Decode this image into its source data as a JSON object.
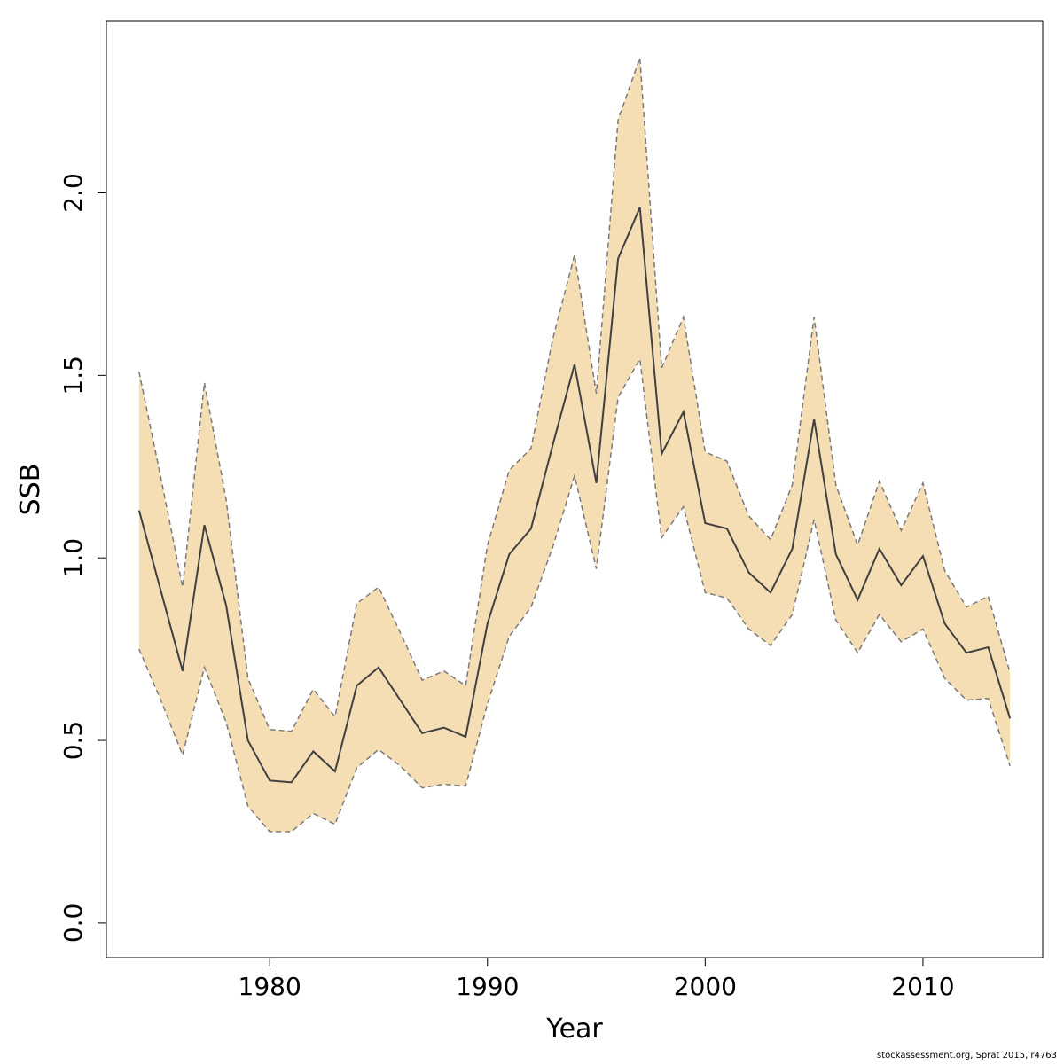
{
  "chart_data": {
    "type": "area",
    "xlabel": "Year",
    "ylabel": "SSB",
    "xlim": [
      1972.5,
      2015.5
    ],
    "ylim": [
      -0.095,
      2.47
    ],
    "x_ticks": [
      1980,
      1990,
      2000,
      2010
    ],
    "x_tick_labels": [
      "1980",
      "1990",
      "2000",
      "2010"
    ],
    "y_ticks": [
      0.0,
      0.5,
      1.0,
      1.5,
      2.0
    ],
    "y_tick_labels": [
      "0.0",
      "0.5",
      "1.0",
      "1.5",
      "2.0"
    ],
    "grid": false,
    "legend": "none",
    "colors": {
      "band": "#f5deb3",
      "line": "#404040",
      "bounds": "#7a7a7a"
    },
    "x": [
      1974,
      1975,
      1976,
      1977,
      1978,
      1979,
      1980,
      1981,
      1982,
      1983,
      1984,
      1985,
      1986,
      1987,
      1988,
      1989,
      1990,
      1991,
      1992,
      1993,
      1994,
      1995,
      1996,
      1997,
      1998,
      1999,
      2000,
      2001,
      2002,
      2003,
      2004,
      2005,
      2006,
      2007,
      2008,
      2009,
      2010,
      2011,
      2012,
      2013,
      2014
    ],
    "series": [
      {
        "values": [
          1.13,
          0.91,
          0.69,
          1.09,
          0.87,
          0.5,
          0.39,
          0.385,
          0.47,
          0.415,
          0.65,
          0.7,
          0.61,
          0.52,
          0.535,
          0.51,
          0.82,
          1.01,
          1.08,
          1.31,
          1.53,
          1.205,
          1.82,
          1.96,
          1.285,
          1.4,
          1.095,
          1.08,
          0.96,
          0.905,
          1.025,
          1.38,
          1.01,
          0.885,
          1.025,
          0.925,
          1.005,
          0.82,
          0.74,
          0.755,
          0.56
        ]
      },
      {
        "values": [
          1.51,
          1.22,
          0.92,
          1.48,
          1.16,
          0.67,
          0.53,
          0.525,
          0.64,
          0.565,
          0.875,
          0.92,
          0.795,
          0.665,
          0.69,
          0.65,
          1.035,
          1.24,
          1.3,
          1.6,
          1.83,
          1.45,
          2.2,
          2.37,
          1.52,
          1.66,
          1.29,
          1.265,
          1.115,
          1.05,
          1.2,
          1.66,
          1.2,
          1.035,
          1.21,
          1.075,
          1.205,
          0.965,
          0.865,
          0.895,
          0.685
        ]
      },
      {
        "values": [
          0.75,
          0.61,
          0.46,
          0.7,
          0.55,
          0.32,
          0.25,
          0.25,
          0.3,
          0.27,
          0.425,
          0.475,
          0.43,
          0.37,
          0.38,
          0.375,
          0.6,
          0.785,
          0.865,
          1.03,
          1.225,
          0.97,
          1.44,
          1.545,
          1.055,
          1.14,
          0.905,
          0.89,
          0.805,
          0.76,
          0.845,
          1.105,
          0.83,
          0.74,
          0.845,
          0.77,
          0.805,
          0.67,
          0.61,
          0.615,
          0.43
        ]
      }
    ]
  },
  "footer": {
    "credit": "stockassessment.org, Sprat  2015, r4763"
  }
}
